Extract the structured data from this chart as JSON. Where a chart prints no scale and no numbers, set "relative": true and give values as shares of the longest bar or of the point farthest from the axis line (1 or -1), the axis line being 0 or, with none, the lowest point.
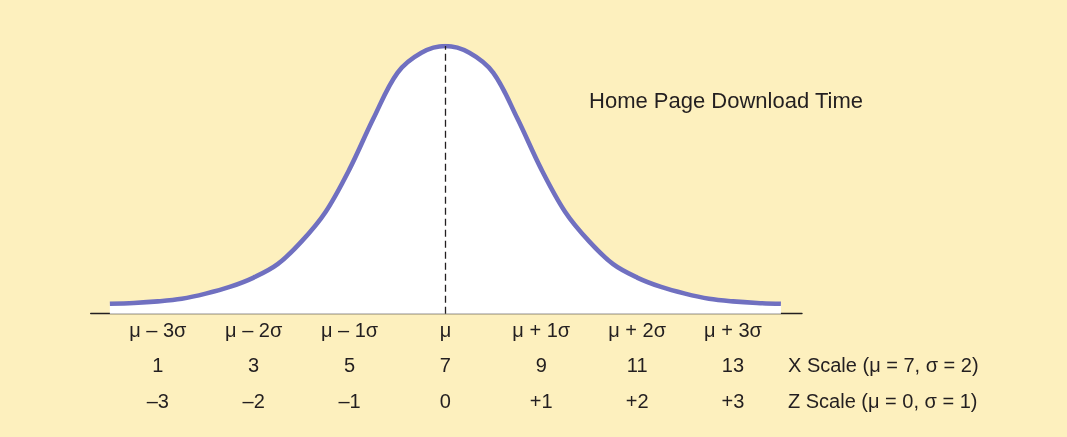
{
  "chart_data": {
    "type": "area",
    "title": "Home Page Download Time",
    "x": [
      0,
      0.5,
      1,
      1.5,
      2,
      2.5,
      3,
      3.5,
      4,
      4.5,
      5,
      5.5,
      6,
      6.5,
      7,
      7.5,
      8,
      8.5,
      9,
      9.5,
      10,
      10.5,
      11,
      11.5,
      12,
      12.5,
      13,
      13.5,
      14
    ],
    "series": [
      {
        "color": "#7070c0",
        "values": [
          0.037,
          0.04,
          0.046,
          0.056,
          0.075,
          0.1,
          0.135,
          0.185,
          0.27,
          0.38,
          0.54,
          0.73,
          0.9,
          0.975,
          1,
          0.975,
          0.9,
          0.73,
          0.54,
          0.38,
          0.27,
          0.185,
          0.135,
          0.1,
          0.075,
          0.056,
          0.046,
          0.04,
          0.037
        ]
      }
    ],
    "relative": true,
    "xlim": [
      -0.4,
      14.44
    ],
    "xticks": [
      1,
      3,
      5,
      7,
      9,
      11,
      13
    ],
    "xlabel": "X Scale (μ = 7, σ = 2)",
    "x2lim": [
      -3.7,
      3.72
    ],
    "x2ticks": [
      {
        "value": -3,
        "label": "–3"
      },
      {
        "value": -2,
        "label": "–2"
      },
      {
        "value": -1,
        "label": "–1"
      },
      0,
      {
        "value": 1,
        "label": "+1"
      },
      {
        "value": 2,
        "label": "+2"
      },
      {
        "value": 3,
        "label": "+3"
      }
    ],
    "x2label": "Z Scale (μ = 0, σ = 1)",
    "annotations": [
      {
        "text": "μ – 3σ",
        "x": 1,
        "y": 0
      },
      {
        "text": "μ – 2σ",
        "x": 3,
        "y": 0
      },
      {
        "text": "μ – 1σ",
        "x": 5,
        "y": 0
      },
      {
        "text": "μ",
        "x": 7,
        "y": 0
      },
      {
        "text": "μ + 1σ",
        "x": 9,
        "y": 0
      },
      {
        "text": "μ + 2σ",
        "x": 11,
        "y": 0
      },
      {
        "text": "μ + 3σ",
        "x": 13,
        "y": 0
      }
    ],
    "ref_lines": [
      {
        "axis": "x",
        "value": 7,
        "line_style": "dashed",
        "color": "#231f20"
      }
    ],
    "marker": "none",
    "line_style": "solid"
  }
}
